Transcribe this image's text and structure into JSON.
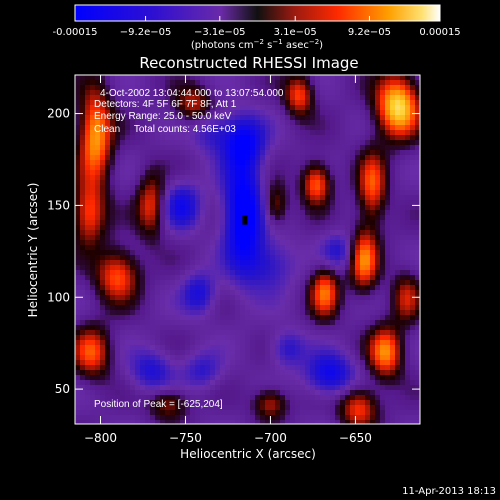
{
  "chart_data": {
    "type": "heatmap",
    "title": "Reconstructed RHESSI Image",
    "xlabel": "Heliocentric X (arcsec)",
    "ylabel": "Heliocentric Y (arcsec)",
    "xlim": [
      -815,
      -612
    ],
    "ylim": [
      31,
      221
    ],
    "x_ticks": [
      -800,
      -750,
      -700,
      -650
    ],
    "y_ticks": [
      50,
      100,
      150,
      200
    ],
    "colorbar": {
      "range": [
        -0.00015,
        0.00015
      ],
      "tick_values": [
        -0.00015,
        -9.2e-05,
        -3.1e-05,
        3.1e-05,
        9.2e-05,
        0.00015
      ],
      "tick_labels": [
        "-0.00015",
        "−9.2e−05",
        "−3.1e−05",
        "3.1e−05",
        "9.2e−05",
        "0.00015"
      ],
      "units_text": "(photons cm",
      "units_exp1": "−2",
      "units_mid": " s",
      "units_exp2": "−1",
      "units_end": " asec",
      "units_exp3": "−2",
      "units_close": ")"
    },
    "annotations": {
      "time_line": "4-Oct-2002 13:04:44.000 to 13:07:54.000",
      "detectors_line": "Detectors: 4F 5F 6F 7F 8F, Att 1",
      "energy_line": "Energy Range: 25.0 - 50.0 keV",
      "clean_line": "Clean     Total counts: 4.56E+03",
      "peak_line": "Position of Peak = [-625,204]"
    },
    "peak": {
      "x": -625,
      "y": 204
    },
    "minimum_marker": {
      "x": -715,
      "y": 142
    },
    "blobs": [
      {
        "x": -716,
        "y": 145,
        "amp": -2.0,
        "sx": 8,
        "sy": 22
      },
      {
        "x": -716,
        "y": 185,
        "amp": -1.4,
        "sx": 9,
        "sy": 10
      },
      {
        "x": -752,
        "y": 150,
        "amp": -1.2,
        "sx": 8,
        "sy": 9
      },
      {
        "x": -742,
        "y": 102,
        "amp": -1.1,
        "sx": 7,
        "sy": 8
      },
      {
        "x": -770,
        "y": 60,
        "amp": -1.0,
        "sx": 9,
        "sy": 8
      },
      {
        "x": -665,
        "y": 58,
        "amp": -1.4,
        "sx": 10,
        "sy": 8
      },
      {
        "x": -700,
        "y": 118,
        "amp": -0.9,
        "sx": 10,
        "sy": 10
      },
      {
        "x": -690,
        "y": 72,
        "amp": -0.9,
        "sx": 7,
        "sy": 7
      },
      {
        "x": -660,
        "y": 125,
        "amp": -0.9,
        "sx": 7,
        "sy": 7
      },
      {
        "x": -735,
        "y": 190,
        "amp": -0.8,
        "sx": 8,
        "sy": 8
      },
      {
        "x": -740,
        "y": 60,
        "amp": -0.8,
        "sx": 8,
        "sy": 7
      },
      {
        "x": -625,
        "y": 204,
        "amp": 2.3,
        "sx": 9,
        "sy": 12
      },
      {
        "x": -803,
        "y": 188,
        "amp": 1.9,
        "sx": 7,
        "sy": 18
      },
      {
        "x": -807,
        "y": 145,
        "amp": 1.4,
        "sx": 7,
        "sy": 12
      },
      {
        "x": -790,
        "y": 112,
        "amp": 1.5,
        "sx": 9,
        "sy": 10
      },
      {
        "x": -770,
        "y": 150,
        "amp": 1.3,
        "sx": 6,
        "sy": 12
      },
      {
        "x": -805,
        "y": 70,
        "amp": 1.4,
        "sx": 8,
        "sy": 10
      },
      {
        "x": -673,
        "y": 162,
        "amp": 1.6,
        "sx": 6,
        "sy": 8
      },
      {
        "x": -640,
        "y": 160,
        "amp": 1.4,
        "sx": 6,
        "sy": 14
      },
      {
        "x": -668,
        "y": 103,
        "amp": 1.5,
        "sx": 6,
        "sy": 10
      },
      {
        "x": -645,
        "y": 120,
        "amp": 1.6,
        "sx": 6,
        "sy": 12
      },
      {
        "x": -632,
        "y": 70,
        "amp": 1.7,
        "sx": 7,
        "sy": 10
      },
      {
        "x": -648,
        "y": 40,
        "amp": 1.4,
        "sx": 8,
        "sy": 8
      },
      {
        "x": -745,
        "y": 205,
        "amp": 1.1,
        "sx": 8,
        "sy": 7
      },
      {
        "x": -683,
        "y": 210,
        "amp": 1.4,
        "sx": 6,
        "sy": 8
      },
      {
        "x": -697,
        "y": 150,
        "amp": 1.0,
        "sx": 5,
        "sy": 8
      },
      {
        "x": -700,
        "y": 42,
        "amp": 1.1,
        "sx": 7,
        "sy": 6
      },
      {
        "x": -760,
        "y": 42,
        "amp": 1.0,
        "sx": 8,
        "sy": 6
      },
      {
        "x": -620,
        "y": 100,
        "amp": 1.0,
        "sx": 6,
        "sy": 10
      }
    ]
  },
  "footer": {
    "timestamp": "11-Apr-2013 18:13"
  },
  "colors": {
    "background": "#000000",
    "text": "#ffffff"
  }
}
